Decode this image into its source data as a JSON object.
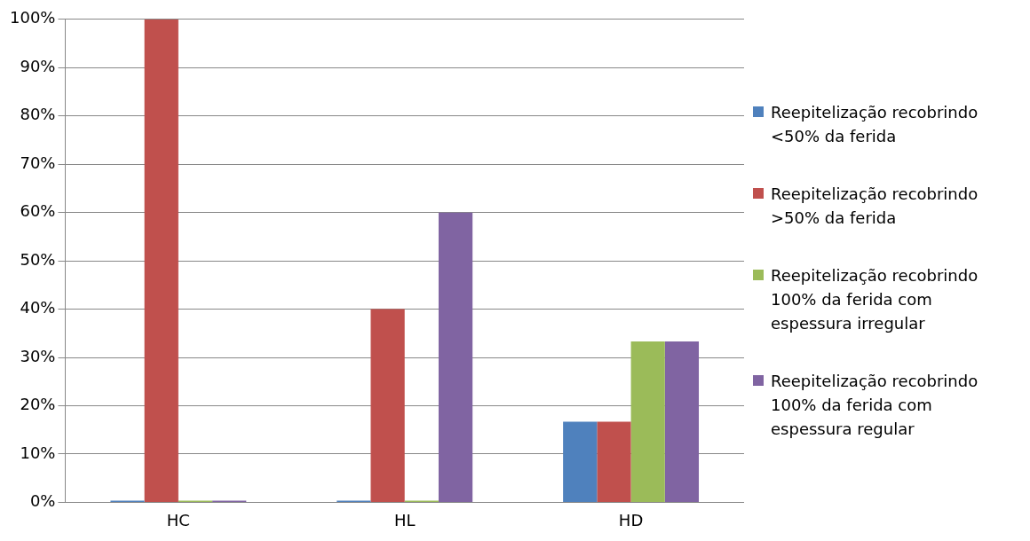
{
  "chart_data": {
    "type": "bar",
    "categories": [
      "HC",
      "HL",
      "HD"
    ],
    "series": [
      {
        "name": "Reepitelização recobrindo <50% da ferida",
        "color": "#4f81bd",
        "values": [
          0,
          0,
          16.7
        ]
      },
      {
        "name": "Reepitelização recobrindo >50% da ferida",
        "color": "#c0504d",
        "values": [
          100,
          40,
          16.7
        ]
      },
      {
        "name": "Reepitelização recobrindo 100% da ferida com espessura irregular",
        "color": "#9bbb59",
        "values": [
          0,
          0,
          33.3
        ]
      },
      {
        "name": "Reepitelização recobrindo 100% da ferida com espessura regular",
        "color": "#8064a2",
        "values": [
          0,
          60,
          33.3
        ]
      }
    ],
    "ylim": [
      0,
      100
    ],
    "yticks": [
      {
        "value": 0,
        "label": "0%"
      },
      {
        "value": 10,
        "label": "10%"
      },
      {
        "value": 20,
        "label": "20%"
      },
      {
        "value": 30,
        "label": "30%"
      },
      {
        "value": 40,
        "label": "40%"
      },
      {
        "value": 50,
        "label": "50%"
      },
      {
        "value": 60,
        "label": "60%"
      },
      {
        "value": 70,
        "label": "70%"
      },
      {
        "value": 80,
        "label": "80%"
      },
      {
        "value": 90,
        "label": "90%"
      },
      {
        "value": 100,
        "label": "100%"
      }
    ],
    "grid": "y",
    "legend": "right"
  }
}
